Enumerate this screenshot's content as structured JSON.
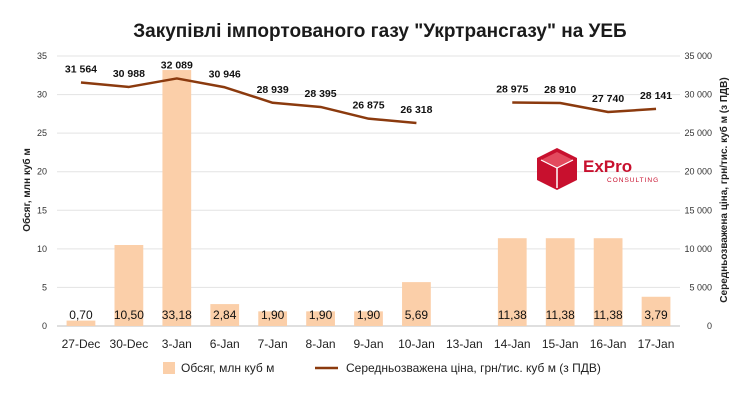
{
  "chart_data": {
    "type": "bar",
    "title": "Закупівлі імпортованого газу \"Укртрансгазу\" на УЕБ",
    "categories": [
      "27-Dec",
      "30-Dec",
      "3-Jan",
      "6-Jan",
      "7-Jan",
      "8-Jan",
      "9-Jan",
      "10-Jan",
      "13-Jan",
      "14-Jan",
      "15-Jan",
      "16-Jan",
      "17-Jan"
    ],
    "ylabel_left": "Обсяг, млн куб м",
    "ylabel_right": "Середньозважена ціна, грн/тис. куб м (з ПДВ)",
    "ylim_left": [
      0,
      35
    ],
    "ylim_right": [
      0,
      35000
    ],
    "yticks_left": [
      "0",
      "5",
      "10",
      "15",
      "20",
      "25",
      "30",
      "35"
    ],
    "yticks_right": [
      "0",
      "5 000",
      "10 000",
      "15 000",
      "20 000",
      "25 000",
      "30 000",
      "35 000"
    ],
    "grid": true,
    "legend_position": "bottom",
    "series": [
      {
        "name": "Обсяг, млн куб м",
        "kind": "bar",
        "axis": "left",
        "color": "#fbcfa9",
        "values": [
          0.7,
          10.5,
          33.18,
          2.84,
          1.9,
          1.9,
          1.9,
          5.69,
          null,
          11.38,
          11.38,
          11.38,
          3.79
        ],
        "labels": [
          "0,70",
          "10,50",
          "33,18",
          "2,84",
          "1,90",
          "1,90",
          "1,90",
          "5,69",
          "",
          "11,38",
          "11,38",
          "11,38",
          "3,79"
        ]
      },
      {
        "name": "Середньозважена ціна, грн/тис. куб м (з ПДВ)",
        "kind": "line",
        "axis": "right",
        "color": "#8b3a0e",
        "values": [
          31564,
          30988,
          32089,
          30946,
          28939,
          28395,
          26875,
          26318,
          null,
          28975,
          28910,
          27740,
          28141
        ],
        "labels": [
          "31 564",
          "30 988",
          "32 089",
          "30 946",
          "28 939",
          "28 395",
          "26 875",
          "26 318",
          "",
          "28 975",
          "28 910",
          "27 740",
          "28 141"
        ]
      }
    ]
  },
  "logo": {
    "name": "ExPro",
    "sub": "CONSULTING",
    "color": "#c8102e"
  }
}
